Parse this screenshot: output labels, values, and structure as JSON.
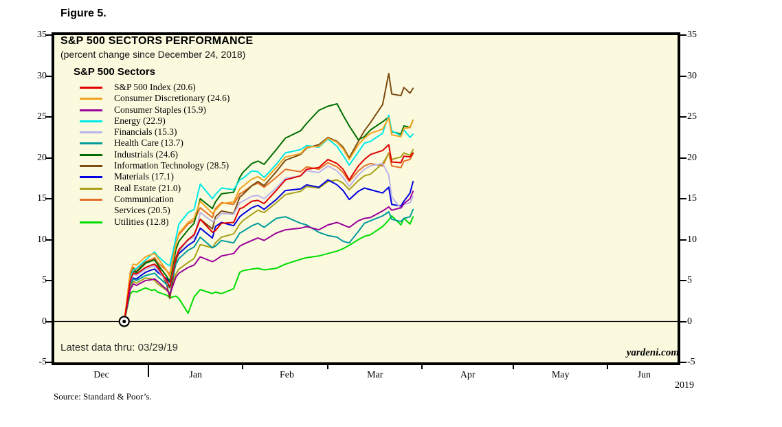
{
  "figure": {
    "label": "Figure 5."
  },
  "chart": {
    "title": "S&P 500 SECTORS PERFORMANCE",
    "subtitle": "(percent change since December 24, 2018)",
    "legend_heading": "S&P 500 Sectors",
    "latest_data_note": "Latest data thru: 03/29/19",
    "watermark": "yardeni.com",
    "source_note": "Source: Standard & Poor’s.",
    "x_axis": {
      "year_label": "2019"
    }
  },
  "chart_data": {
    "type": "line",
    "title": "S&P 500 SECTORS PERFORMANCE",
    "subtitle": "(percent change since December 24, 2018)",
    "ylabel": "percent change since December 24, 2018",
    "ylim": [
      -5,
      35
    ],
    "y_ticks": [
      -5,
      0,
      5,
      10,
      15,
      20,
      25,
      30,
      35
    ],
    "grid": "zero-line-only",
    "legend_position": "top-left-inside",
    "plot_background": "#FBFADF",
    "x_unit": "days since 2018-12-01",
    "x_domain_days": 205,
    "origin_marker": {
      "day": 23,
      "value": 0,
      "date": "12/24/18"
    },
    "months": [
      {
        "label": "Dec",
        "center_day": 15.5
      },
      {
        "label": "Jan",
        "center_day": 46.5
      },
      {
        "label": "Feb",
        "center_day": 76.5
      },
      {
        "label": "Mar",
        "center_day": 105.5
      },
      {
        "label": "Apr",
        "center_day": 136
      },
      {
        "label": "May",
        "center_day": 166.5
      },
      {
        "label": "Jun",
        "center_day": 194
      }
    ],
    "month_boundaries": [
      {
        "day": 31,
        "long": true
      },
      {
        "day": 62,
        "long": false
      },
      {
        "day": 90,
        "long": false
      },
      {
        "day": 121,
        "long": false
      },
      {
        "day": 151,
        "long": false
      },
      {
        "day": 182,
        "long": false
      }
    ],
    "days": [
      23,
      25,
      26,
      27,
      30,
      32,
      33,
      34,
      37,
      38,
      40,
      41,
      44,
      46,
      48,
      52,
      53,
      55,
      59,
      61,
      62,
      65,
      67,
      69,
      73,
      76,
      81,
      83,
      87,
      90,
      93,
      95,
      97,
      100,
      102,
      104,
      108,
      110,
      111,
      114,
      115,
      117,
      118
    ],
    "series": [
      {
        "name": "S&P 500 Index",
        "label": "S&P 500 Index (20.6)",
        "final_pct": 20.6,
        "color": "#E00000",
        "values": [
          0,
          5.0,
          5.9,
          5.8,
          6.6,
          6.9,
          7.0,
          6.6,
          5.0,
          4.2,
          7.8,
          8.8,
          10.0,
          10.6,
          12.5,
          10.9,
          11.1,
          12.0,
          12.1,
          13.8,
          13.9,
          14.7,
          14.8,
          14.4,
          16.0,
          17.3,
          17.8,
          18.6,
          18.8,
          19.8,
          19.3,
          18.6,
          17.3,
          19.0,
          19.8,
          20.4,
          20.9,
          21.6,
          19.5,
          19.4,
          20.2,
          20.1,
          20.6
        ]
      },
      {
        "name": "Consumer Discretionary",
        "label": "Consumer Discretionary (24.6)",
        "final_pct": 24.6,
        "color": "#F2A01E",
        "values": [
          0,
          6.1,
          7.0,
          6.9,
          7.9,
          8.2,
          8.3,
          7.8,
          6.2,
          5.5,
          9.4,
          10.8,
          12.1,
          12.6,
          14.7,
          13.2,
          13.6,
          14.4,
          14.6,
          16.2,
          16.5,
          17.4,
          17.7,
          17.2,
          18.8,
          20.1,
          20.5,
          21.3,
          21.4,
          22.4,
          21.9,
          21.1,
          19.8,
          21.6,
          22.4,
          23.0,
          23.5,
          24.9,
          22.8,
          22.6,
          23.6,
          23.7,
          24.6
        ]
      },
      {
        "name": "Consumer Staples",
        "label": "Consumer Staples (15.9)",
        "final_pct": 15.9,
        "color": "#990099",
        "values": [
          0,
          3.9,
          4.6,
          4.4,
          5.0,
          5.1,
          5.2,
          4.9,
          3.9,
          3.3,
          5.4,
          5.9,
          6.6,
          6.9,
          7.9,
          7.3,
          7.5,
          8.0,
          8.3,
          9.2,
          9.4,
          9.9,
          10.2,
          9.9,
          10.8,
          11.2,
          11.4,
          11.6,
          11.2,
          11.8,
          12.1,
          11.8,
          11.5,
          12.3,
          12.6,
          12.7,
          13.5,
          14.0,
          13.6,
          13.9,
          14.4,
          15.0,
          15.9
        ]
      },
      {
        "name": "Energy",
        "label": "Energy (22.9)",
        "final_pct": 22.9,
        "color": "#00E8E8",
        "values": [
          0,
          5.2,
          6.3,
          6.5,
          7.5,
          8.2,
          8.5,
          8.0,
          7.0,
          6.8,
          10.2,
          11.9,
          13.3,
          13.7,
          16.8,
          15.0,
          15.5,
          16.3,
          16.1,
          17.3,
          17.5,
          18.4,
          18.3,
          17.6,
          19.2,
          20.6,
          21.0,
          21.5,
          21.3,
          22.3,
          21.4,
          20.3,
          19.1,
          20.7,
          21.8,
          22.0,
          23.0,
          25.2,
          23.3,
          22.7,
          23.4,
          22.5,
          22.9
        ]
      },
      {
        "name": "Financials",
        "label": "Financials (15.3)",
        "final_pct": 15.3,
        "color": "#BBB4EC",
        "values": [
          0,
          4.9,
          5.8,
          5.6,
          6.4,
          6.7,
          6.8,
          6.3,
          4.9,
          4.3,
          7.9,
          8.7,
          9.9,
          10.3,
          13.3,
          12.2,
          12.4,
          13.2,
          13.1,
          14.5,
          14.7,
          15.3,
          15.4,
          15.0,
          16.3,
          17.5,
          17.8,
          18.4,
          18.2,
          19.0,
          18.4,
          17.6,
          16.5,
          17.9,
          18.6,
          19.0,
          19.3,
          17.9,
          15.2,
          13.8,
          14.3,
          14.5,
          15.3
        ]
      },
      {
        "name": "Health Care",
        "label": "Health Care (13.7)",
        "final_pct": 13.7,
        "color": "#009B9B",
        "values": [
          0,
          4.5,
          5.2,
          5.0,
          5.6,
          5.8,
          5.9,
          5.5,
          4.5,
          4.1,
          7.0,
          7.7,
          8.7,
          9.1,
          10.3,
          9.0,
          9.2,
          9.9,
          9.6,
          10.8,
          11.0,
          11.7,
          12.0,
          11.5,
          12.6,
          12.8,
          12.0,
          11.8,
          10.9,
          10.5,
          10.3,
          9.8,
          9.6,
          11.0,
          12.0,
          12.3,
          12.9,
          13.4,
          12.5,
          12.2,
          12.6,
          12.8,
          13.7
        ]
      },
      {
        "name": "Industrials",
        "label": "Industrials (24.6)",
        "final_pct": 24.6,
        "color": "#006E00",
        "values": [
          0,
          5.3,
          6.1,
          6.0,
          7.1,
          7.4,
          7.5,
          7.0,
          5.5,
          4.9,
          8.8,
          9.8,
          11.2,
          12.0,
          15.0,
          13.8,
          14.6,
          15.6,
          15.8,
          17.6,
          18.2,
          19.3,
          19.6,
          19.2,
          21.0,
          22.4,
          23.3,
          24.2,
          25.8,
          26.3,
          26.6,
          25.2,
          23.9,
          22.2,
          22.6,
          23.4,
          24.4,
          25.0,
          23.2,
          22.9,
          23.9,
          23.7,
          24.6
        ]
      },
      {
        "name": "Information Technology",
        "label": "Information Technology (28.5)",
        "final_pct": 28.5,
        "color": "#7C4A10",
        "values": [
          0,
          5.5,
          6.4,
          6.1,
          7.2,
          7.4,
          7.6,
          6.9,
          4.5,
          2.8,
          7.4,
          8.6,
          10.0,
          10.6,
          12.5,
          11.3,
          12.8,
          13.5,
          13.2,
          15.2,
          15.5,
          16.6,
          17.1,
          16.6,
          18.3,
          19.7,
          20.4,
          21.2,
          21.6,
          22.5,
          22.0,
          21.3,
          20.0,
          22.0,
          23.3,
          24.3,
          26.5,
          30.3,
          27.8,
          27.6,
          28.6,
          27.9,
          28.5
        ]
      },
      {
        "name": "Materials",
        "label": "Materials (17.1)",
        "final_pct": 17.1,
        "color": "#0000E0",
        "values": [
          0,
          4.6,
          5.3,
          5.2,
          6.0,
          6.3,
          6.4,
          6.0,
          5.2,
          4.8,
          7.6,
          8.3,
          9.3,
          9.8,
          11.4,
          10.2,
          11.6,
          12.1,
          11.7,
          12.8,
          13.1,
          13.9,
          14.2,
          13.7,
          14.9,
          16.0,
          16.2,
          16.7,
          16.4,
          17.3,
          16.7,
          16.0,
          14.9,
          15.9,
          16.3,
          16.1,
          15.7,
          16.4,
          14.3,
          14.1,
          14.7,
          15.7,
          17.1
        ]
      },
      {
        "name": "Real Estate",
        "label": "Real Estate (21.0)",
        "final_pct": 21.0,
        "color": "#A8A018",
        "values": [
          0,
          4.2,
          4.9,
          4.7,
          5.3,
          5.2,
          5.0,
          4.6,
          3.8,
          3.4,
          5.8,
          6.4,
          7.2,
          7.7,
          9.4,
          9.0,
          9.6,
          10.3,
          10.7,
          11.9,
          12.3,
          13.1,
          13.6,
          13.3,
          14.5,
          15.5,
          15.9,
          16.5,
          16.3,
          17.1,
          17.3,
          16.9,
          16.1,
          17.2,
          17.8,
          18.0,
          19.3,
          20.5,
          19.8,
          20.1,
          20.6,
          20.3,
          21.0
        ]
      },
      {
        "name": "Communication Services",
        "label": "Communication\nServices (20.5)",
        "final_pct": 20.5,
        "color": "#E46F26",
        "values": [
          0,
          5.6,
          6.6,
          6.4,
          7.3,
          7.6,
          7.8,
          7.2,
          6.2,
          5.8,
          9.6,
          10.6,
          11.9,
          12.3,
          13.9,
          12.7,
          13.8,
          14.5,
          14.3,
          15.6,
          15.8,
          16.6,
          16.9,
          16.4,
          17.6,
          18.6,
          18.3,
          18.9,
          18.6,
          19.4,
          18.9,
          18.2,
          17.1,
          18.4,
          19.0,
          19.3,
          19.0,
          20.6,
          19.0,
          18.8,
          19.6,
          19.8,
          20.5
        ]
      },
      {
        "name": "Utilities",
        "label": "Utilities (12.8)",
        "final_pct": 12.8,
        "color": "#00DC00",
        "values": [
          0,
          3.4,
          3.7,
          3.6,
          4.1,
          3.8,
          3.9,
          3.6,
          3.2,
          2.9,
          3.1,
          2.8,
          1.0,
          3.0,
          3.9,
          3.4,
          3.6,
          3.4,
          4.0,
          6.0,
          6.2,
          6.4,
          6.5,
          6.3,
          6.5,
          7.0,
          7.6,
          7.8,
          8.0,
          8.3,
          8.6,
          8.9,
          9.3,
          10.0,
          10.4,
          10.6,
          11.6,
          12.4,
          12.9,
          11.8,
          12.6,
          11.9,
          12.8
        ]
      }
    ]
  }
}
